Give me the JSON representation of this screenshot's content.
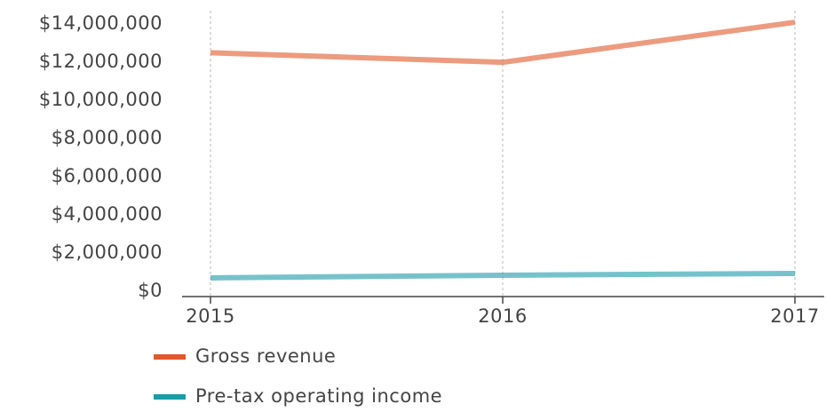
{
  "chart_data": {
    "type": "line",
    "categories": [
      "2015",
      "2016",
      "2017"
    ],
    "series": [
      {
        "name": "Gross revenue",
        "color": "#e0592a",
        "values": [
          12500000,
          12000000,
          14100000
        ]
      },
      {
        "name": "Pre-tax operating income",
        "color": "#1b9aa9",
        "values": [
          700000,
          840000,
          930000
        ]
      }
    ],
    "ylim": [
      0,
      14800000
    ],
    "yticks": [
      {
        "value": 0,
        "label": "$0"
      },
      {
        "value": 2000000,
        "label": "$2,000,000"
      },
      {
        "value": 4000000,
        "label": "$4,000,000"
      },
      {
        "value": 6000000,
        "label": "$6,000,000"
      },
      {
        "value": 8000000,
        "label": "$8,000,000"
      },
      {
        "value": 10000000,
        "label": "$10,000,000"
      },
      {
        "value": 12000000,
        "label": "$12,000,000"
      },
      {
        "value": 14000000,
        "label": "$14,000,000"
      }
    ],
    "grid": "x",
    "legend": "bottom-left"
  }
}
